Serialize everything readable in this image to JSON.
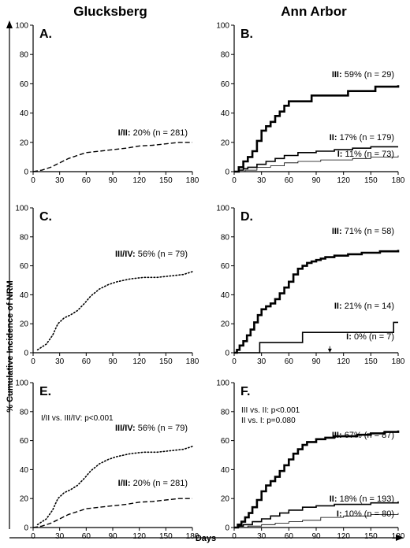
{
  "figure": {
    "column_titles": [
      "Glucksberg",
      "Ann Arbor"
    ],
    "y_axis_title": "% Cumulative Incidence of NRM",
    "x_axis_title": "Days"
  },
  "chart_data": [
    {
      "type": "line",
      "panel": "A.",
      "column": "Glucksberg",
      "xlim": [
        0,
        180
      ],
      "ylim": [
        0,
        100
      ],
      "xticks": [
        0,
        30,
        60,
        90,
        120,
        150,
        180
      ],
      "yticks": [
        0,
        20,
        40,
        60,
        80,
        100
      ],
      "notes": [],
      "series": [
        {
          "label_prefix": "I/II:",
          "label_rest": " 20% (n = 281)",
          "style": "dashed",
          "width": 1.4,
          "points": [
            [
              0,
              0
            ],
            [
              10,
              1
            ],
            [
              20,
              3
            ],
            [
              30,
              6
            ],
            [
              40,
              9
            ],
            [
              50,
              11
            ],
            [
              60,
              13
            ],
            [
              75,
              14
            ],
            [
              90,
              15
            ],
            [
              105,
              16
            ],
            [
              120,
              17.5
            ],
            [
              135,
              18
            ],
            [
              150,
              19
            ],
            [
              165,
              20
            ],
            [
              180,
              20
            ]
          ]
        }
      ]
    },
    {
      "type": "step",
      "panel": "B.",
      "column": "Ann Arbor",
      "xlim": [
        0,
        180
      ],
      "ylim": [
        0,
        100
      ],
      "xticks": [
        0,
        30,
        60,
        90,
        120,
        150,
        180
      ],
      "yticks": [
        0,
        20,
        40,
        60,
        80,
        100
      ],
      "notes": [],
      "series": [
        {
          "label_prefix": "III:",
          "label_rest": " 59% (n = 29)",
          "style": "thick",
          "width": 2.6,
          "points": [
            [
              0,
              0
            ],
            [
              5,
              3
            ],
            [
              10,
              7
            ],
            [
              15,
              10
            ],
            [
              20,
              14
            ],
            [
              25,
              21
            ],
            [
              30,
              28
            ],
            [
              35,
              31
            ],
            [
              40,
              34
            ],
            [
              45,
              38
            ],
            [
              50,
              41
            ],
            [
              55,
              45
            ],
            [
              60,
              48
            ],
            [
              80,
              48
            ],
            [
              85,
              52
            ],
            [
              120,
              52
            ],
            [
              125,
              55
            ],
            [
              150,
              55
            ],
            [
              155,
              58
            ],
            [
              180,
              59
            ]
          ]
        },
        {
          "label_prefix": "II:",
          "label_rest": " 17% (n = 179)",
          "style": "medium",
          "width": 1.6,
          "points": [
            [
              0,
              0
            ],
            [
              5,
              1
            ],
            [
              10,
              2
            ],
            [
              15,
              3
            ],
            [
              25,
              5
            ],
            [
              35,
              7
            ],
            [
              45,
              9
            ],
            [
              55,
              11
            ],
            [
              70,
              13
            ],
            [
              90,
              14
            ],
            [
              110,
              15
            ],
            [
              130,
              16
            ],
            [
              150,
              17
            ],
            [
              180,
              17
            ]
          ]
        },
        {
          "label_prefix": "I:",
          "label_rest": " 11% (n = 73)",
          "style": "thin",
          "width": 0.8,
          "points": [
            [
              0,
              0
            ],
            [
              12,
              1
            ],
            [
              25,
              3
            ],
            [
              40,
              4
            ],
            [
              55,
              6
            ],
            [
              70,
              7
            ],
            [
              95,
              8
            ],
            [
              130,
              9
            ],
            [
              150,
              10
            ],
            [
              180,
              11
            ]
          ]
        }
      ]
    },
    {
      "type": "line",
      "panel": "C.",
      "column": "Glucksberg",
      "xlim": [
        0,
        180
      ],
      "ylim": [
        0,
        100
      ],
      "xticks": [
        0,
        30,
        60,
        90,
        120,
        150,
        180
      ],
      "yticks": [
        0,
        20,
        40,
        60,
        80,
        100
      ],
      "notes": [],
      "series": [
        {
          "label_prefix": "III/IV:",
          "label_rest": " 56% (n = 79)",
          "style": "dotted",
          "width": 1.6,
          "points": [
            [
              5,
              2
            ],
            [
              15,
              6
            ],
            [
              22,
              12
            ],
            [
              28,
              20
            ],
            [
              35,
              24
            ],
            [
              42,
              26
            ],
            [
              50,
              29
            ],
            [
              58,
              34
            ],
            [
              65,
              39
            ],
            [
              75,
              44
            ],
            [
              85,
              47
            ],
            [
              95,
              49
            ],
            [
              110,
              51
            ],
            [
              125,
              52
            ],
            [
              140,
              52
            ],
            [
              155,
              53
            ],
            [
              170,
              54
            ],
            [
              180,
              56
            ]
          ]
        }
      ]
    },
    {
      "type": "step",
      "panel": "D.",
      "column": "Ann Arbor",
      "xlim": [
        0,
        180
      ],
      "ylim": [
        0,
        100
      ],
      "xticks": [
        0,
        30,
        60,
        90,
        120,
        150,
        180
      ],
      "yticks": [
        0,
        20,
        40,
        60,
        80,
        100
      ],
      "notes": [],
      "series": [
        {
          "label_prefix": "III:",
          "label_rest": " 71% (n = 58)",
          "style": "thick",
          "width": 2.6,
          "points": [
            [
              0,
              0
            ],
            [
              3,
              2
            ],
            [
              6,
              5
            ],
            [
              10,
              8
            ],
            [
              14,
              12
            ],
            [
              18,
              16
            ],
            [
              22,
              21
            ],
            [
              26,
              26
            ],
            [
              30,
              30
            ],
            [
              35,
              32
            ],
            [
              40,
              34
            ],
            [
              45,
              37
            ],
            [
              50,
              41
            ],
            [
              55,
              45
            ],
            [
              60,
              49
            ],
            [
              65,
              54
            ],
            [
              70,
              58
            ],
            [
              75,
              60
            ],
            [
              80,
              62
            ],
            [
              85,
              63
            ],
            [
              90,
              64
            ],
            [
              95,
              65
            ],
            [
              100,
              66
            ],
            [
              110,
              67
            ],
            [
              125,
              68
            ],
            [
              140,
              69
            ],
            [
              160,
              70
            ],
            [
              180,
              71
            ]
          ]
        },
        {
          "label_prefix": "II:",
          "label_rest": " 21% (n = 14)",
          "style": "medium",
          "width": 1.6,
          "points": [
            [
              0,
              0
            ],
            [
              28,
              0
            ],
            [
              28,
              7
            ],
            [
              75,
              7
            ],
            [
              75,
              14
            ],
            [
              175,
              14
            ],
            [
              175,
              21
            ],
            [
              180,
              21
            ]
          ]
        },
        {
          "label_prefix": "I:",
          "label_rest": " 0% (n = 7)",
          "style": "thin",
          "width": 0.8,
          "points": [
            [
              0,
              0
            ],
            [
              180,
              0
            ]
          ]
        }
      ]
    },
    {
      "type": "line",
      "panel": "E.",
      "column": "Glucksberg",
      "xlim": [
        0,
        180
      ],
      "ylim": [
        0,
        100
      ],
      "xticks": [
        0,
        30,
        60,
        90,
        120,
        150,
        180
      ],
      "yticks": [
        0,
        20,
        40,
        60,
        80,
        100
      ],
      "notes": [
        "I/II vs. III/IV: p<0.001"
      ],
      "series": [
        {
          "label_prefix": "III/IV:",
          "label_rest": " 56% (n = 79)",
          "style": "dotted",
          "width": 1.6,
          "points": [
            [
              5,
              2
            ],
            [
              15,
              6
            ],
            [
              22,
              12
            ],
            [
              28,
              20
            ],
            [
              35,
              24
            ],
            [
              42,
              26
            ],
            [
              50,
              29
            ],
            [
              58,
              34
            ],
            [
              65,
              39
            ],
            [
              75,
              44
            ],
            [
              85,
              47
            ],
            [
              95,
              49
            ],
            [
              110,
              51
            ],
            [
              125,
              52
            ],
            [
              140,
              52
            ],
            [
              155,
              53
            ],
            [
              170,
              54
            ],
            [
              180,
              56
            ]
          ]
        },
        {
          "label_prefix": "I/II:",
          "label_rest": " 20% (n = 281)",
          "style": "dashed",
          "width": 1.4,
          "points": [
            [
              0,
              0
            ],
            [
              10,
              1
            ],
            [
              20,
              3
            ],
            [
              30,
              6
            ],
            [
              40,
              9
            ],
            [
              50,
              11
            ],
            [
              60,
              13
            ],
            [
              75,
              14
            ],
            [
              90,
              15
            ],
            [
              105,
              16
            ],
            [
              120,
              17.5
            ],
            [
              135,
              18
            ],
            [
              150,
              19
            ],
            [
              165,
              20
            ],
            [
              180,
              20
            ]
          ]
        }
      ]
    },
    {
      "type": "step",
      "panel": "F.",
      "column": "Ann Arbor",
      "xlim": [
        0,
        180
      ],
      "ylim": [
        0,
        100
      ],
      "xticks": [
        0,
        30,
        60,
        90,
        120,
        150,
        180
      ],
      "yticks": [
        0,
        20,
        40,
        60,
        80,
        100
      ],
      "notes": [
        "III vs. II: p<0.001",
        "II vs. I: p=0.080"
      ],
      "series": [
        {
          "label_prefix": "III:",
          "label_rest": " 67% (n = 87)",
          "style": "thick",
          "width": 2.6,
          "points": [
            [
              0,
              0
            ],
            [
              4,
              2
            ],
            [
              8,
              4
            ],
            [
              12,
              7
            ],
            [
              16,
              10
            ],
            [
              20,
              14
            ],
            [
              25,
              19
            ],
            [
              30,
              25
            ],
            [
              35,
              29
            ],
            [
              40,
              32
            ],
            [
              45,
              35
            ],
            [
              50,
              39
            ],
            [
              55,
              43
            ],
            [
              60,
              47
            ],
            [
              65,
              51
            ],
            [
              70,
              54
            ],
            [
              75,
              57
            ],
            [
              80,
              59
            ],
            [
              90,
              61
            ],
            [
              100,
              62
            ],
            [
              110,
              63
            ],
            [
              120,
              63
            ],
            [
              135,
              64
            ],
            [
              150,
              65
            ],
            [
              165,
              66
            ],
            [
              180,
              67
            ]
          ]
        },
        {
          "label_prefix": "II:",
          "label_rest": " 18% (n = 193)",
          "style": "medium",
          "width": 1.6,
          "points": [
            [
              0,
              0
            ],
            [
              5,
              1
            ],
            [
              10,
              2
            ],
            [
              20,
              4
            ],
            [
              30,
              6
            ],
            [
              40,
              8
            ],
            [
              50,
              10
            ],
            [
              60,
              12
            ],
            [
              75,
              14
            ],
            [
              90,
              15
            ],
            [
              110,
              16
            ],
            [
              130,
              16
            ],
            [
              150,
              17
            ],
            [
              180,
              18
            ]
          ]
        },
        {
          "label_prefix": "I:",
          "label_rest": " 10% (n = 80)",
          "style": "thin",
          "width": 0.8,
          "points": [
            [
              0,
              0
            ],
            [
              15,
              1
            ],
            [
              30,
              2
            ],
            [
              45,
              3
            ],
            [
              60,
              4
            ],
            [
              75,
              5
            ],
            [
              95,
              7
            ],
            [
              120,
              8
            ],
            [
              150,
              9
            ],
            [
              180,
              10
            ]
          ]
        }
      ]
    }
  ]
}
